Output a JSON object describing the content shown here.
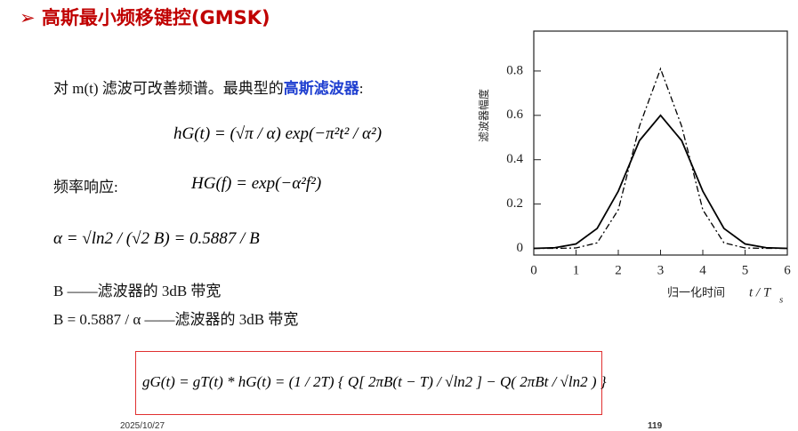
{
  "slide": {
    "title": "➢ 高斯最小频移键控(GMSK)",
    "intro": "对 m(t) 滤波可改善频谱。最典型的",
    "intro_highlight": "高斯滤波器",
    "intro_end": ":",
    "impulse_formula": "hG(t) = (√π / α) exp(−π²t² / α²)",
    "freq_label": "频率响应:",
    "freq_formula": "HG(f) = exp(−α²f²)",
    "alpha_formula": "α = √ln2 / (√2 B) = 0.5887 / B",
    "bw_line1": "B ——滤波器的 3dB 带宽",
    "bw_line2": "B = 0.5887 / α ——滤波器的 3dB 带宽",
    "boxed_formula": "gG(t) = gT(t) * hG(t) = (1 / 2T) { Q[ 2πB(t − T) / √ln2 ] − Q( 2πBt / √ln2 ) }",
    "date": "2025/10/27",
    "page_number": "119"
  },
  "chart_data": {
    "type": "line",
    "y_label": "滤波器幅度",
    "x_label": "归一化时间",
    "x_label_symbol": "t / T",
    "x_label_subscript": "s",
    "x": [
      0,
      0.5,
      1,
      1.5,
      2,
      2.5,
      3,
      3.5,
      4,
      4.5,
      5,
      5.5,
      6
    ],
    "series": [
      {
        "color": "#000000",
        "dash": "solid",
        "values": [
          0,
          0.003,
          0.02,
          0.09,
          0.258,
          0.486,
          0.6,
          0.486,
          0.258,
          0.09,
          0.02,
          0.003,
          0
        ]
      },
      {
        "color": "#000000",
        "dash": "dashdot",
        "values": [
          0,
          0,
          0.002,
          0.025,
          0.174,
          0.551,
          0.81,
          0.551,
          0.174,
          0.025,
          0.002,
          0,
          0
        ]
      }
    ],
    "xlim": [
      0,
      6
    ],
    "ylim": [
      -0.03,
      0.98
    ],
    "xticks": [
      0,
      1,
      2,
      3,
      4,
      5,
      6
    ],
    "yticks": [
      0,
      0.2,
      0.4,
      0.6,
      0.8
    ]
  }
}
